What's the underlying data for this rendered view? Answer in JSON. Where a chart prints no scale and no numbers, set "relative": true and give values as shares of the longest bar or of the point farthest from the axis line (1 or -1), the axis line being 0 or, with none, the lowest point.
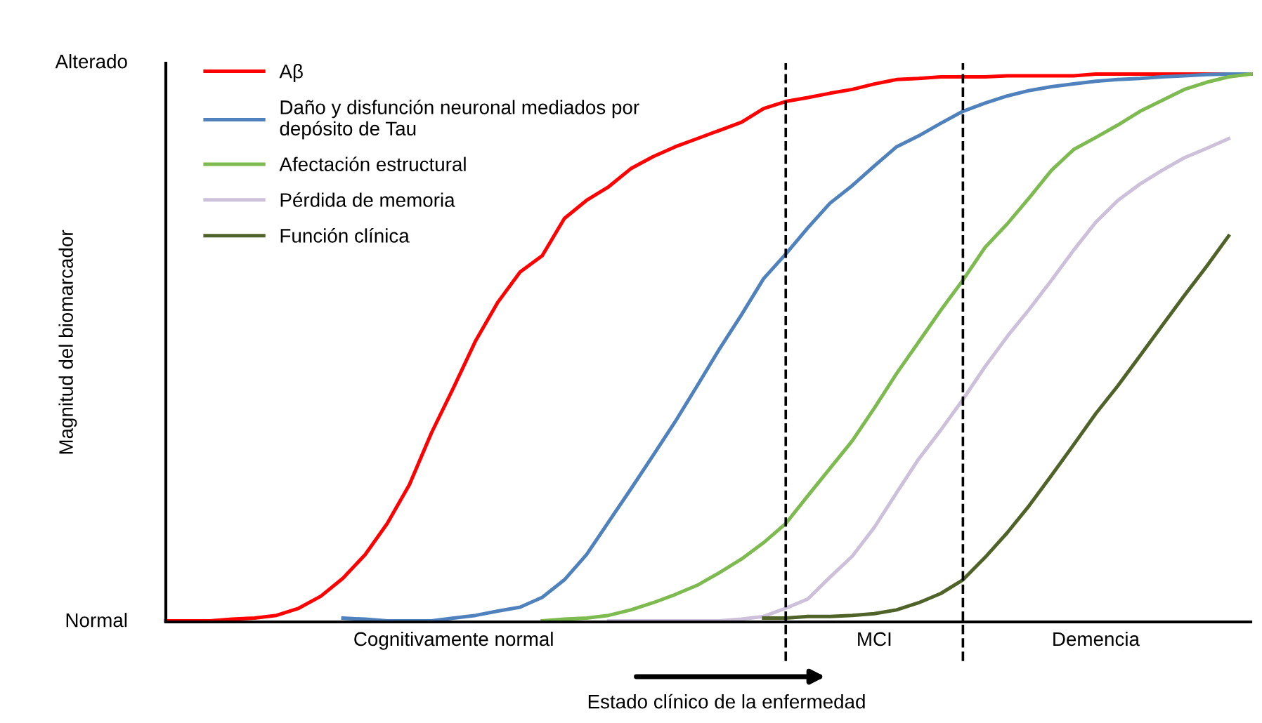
{
  "chart_data": {
    "type": "line",
    "relative": true,
    "xlabel": "Estado clínico de la enfermedad",
    "ylabel": "Magnitud del biomarcador",
    "categories": [
      null,
      null,
      null,
      null,
      null,
      null,
      null,
      null,
      null,
      null,
      null,
      null,
      null,
      "Cognitivamente normal",
      null,
      null,
      null,
      null,
      null,
      null,
      null,
      null,
      null,
      null,
      null,
      null,
      null,
      null,
      null,
      null,
      null,
      null,
      "MCI",
      null,
      null,
      null,
      null,
      null,
      null,
      null,
      null,
      null,
      "Demencia",
      null,
      null,
      null,
      null,
      null,
      null,
      null
    ],
    "annotations": [
      "Alterado",
      "Normal"
    ],
    "legend": "top left",
    "series": [
      {
        "name": "Aβ",
        "color": "#ff0000",
        "values": [
          0,
          0,
          0,
          0.003,
          0.005,
          0.01,
          0.023,
          0.045,
          0.078,
          0.121,
          0.178,
          0.249,
          0.344,
          0.427,
          0.513,
          0.583,
          0.638,
          0.668,
          0.736,
          0.769,
          0.794,
          0.827,
          0.849,
          0.867,
          0.882,
          0.897,
          0.912,
          0.937,
          0.95,
          0.957,
          0.965,
          0.972,
          0.982,
          0.99,
          0.992,
          0.995,
          0.995,
          0.995,
          0.997,
          0.997,
          0.997,
          0.997,
          1,
          1,
          1,
          1,
          1,
          1,
          1,
          1
        ]
      },
      {
        "name": "Daño y disfunción neuronal mediados por\ndepósito de Tau",
        "color": "#4f81bd",
        "values": [
          null,
          null,
          null,
          null,
          null,
          null,
          null,
          null,
          0.005,
          0.003,
          0,
          0,
          0,
          0.005,
          0.01,
          0.018,
          0.025,
          0.043,
          0.075,
          0.121,
          0.181,
          0.241,
          0.302,
          0.364,
          0.43,
          0.497,
          0.56,
          0.626,
          0.671,
          0.719,
          0.764,
          0.796,
          0.832,
          0.867,
          0.887,
          0.91,
          0.932,
          0.947,
          0.96,
          0.97,
          0.977,
          0.982,
          0.987,
          0.99,
          0.992,
          0.995,
          0.997,
          0.999,
          1,
          1
        ]
      },
      {
        "name": "Afectación estructural",
        "color": "#7dba4f",
        "values": [
          null,
          null,
          null,
          null,
          null,
          null,
          null,
          null,
          null,
          null,
          null,
          null,
          null,
          null,
          null,
          null,
          null,
          0,
          0.003,
          0.005,
          0.01,
          0.02,
          0.033,
          0.048,
          0.065,
          0.088,
          0.113,
          0.143,
          0.178,
          0.229,
          0.279,
          0.329,
          0.389,
          0.452,
          0.51,
          0.568,
          0.623,
          0.683,
          0.726,
          0.774,
          0.824,
          0.862,
          0.884,
          0.907,
          0.932,
          0.952,
          0.972,
          0.985,
          0.995,
          1
        ]
      },
      {
        "name": "Pérdida de memoria",
        "color": "#ccc0da",
        "values": [
          null,
          null,
          null,
          null,
          null,
          null,
          null,
          null,
          null,
          null,
          null,
          null,
          null,
          null,
          null,
          null,
          null,
          null,
          null,
          null,
          0,
          0,
          0,
          0,
          0,
          0,
          0.003,
          0.008,
          0.023,
          0.04,
          0.08,
          0.118,
          0.171,
          0.234,
          0.296,
          0.349,
          0.405,
          0.465,
          0.52,
          0.57,
          0.623,
          0.678,
          0.729,
          0.769,
          0.799,
          0.824,
          0.847,
          0.864,
          0.882,
          null
        ]
      },
      {
        "name": "Función clínica",
        "color": "#4f6228",
        "values": [
          null,
          null,
          null,
          null,
          null,
          null,
          null,
          null,
          null,
          null,
          null,
          null,
          null,
          null,
          null,
          null,
          null,
          null,
          null,
          null,
          null,
          null,
          null,
          null,
          null,
          null,
          null,
          0.005,
          0.005,
          0.008,
          0.008,
          0.01,
          0.013,
          0.02,
          0.033,
          0.05,
          0.075,
          0.116,
          0.161,
          0.211,
          0.266,
          0.322,
          0.379,
          0.43,
          0.485,
          0.54,
          0.595,
          0.648,
          0.704,
          null
        ]
      }
    ]
  }
}
